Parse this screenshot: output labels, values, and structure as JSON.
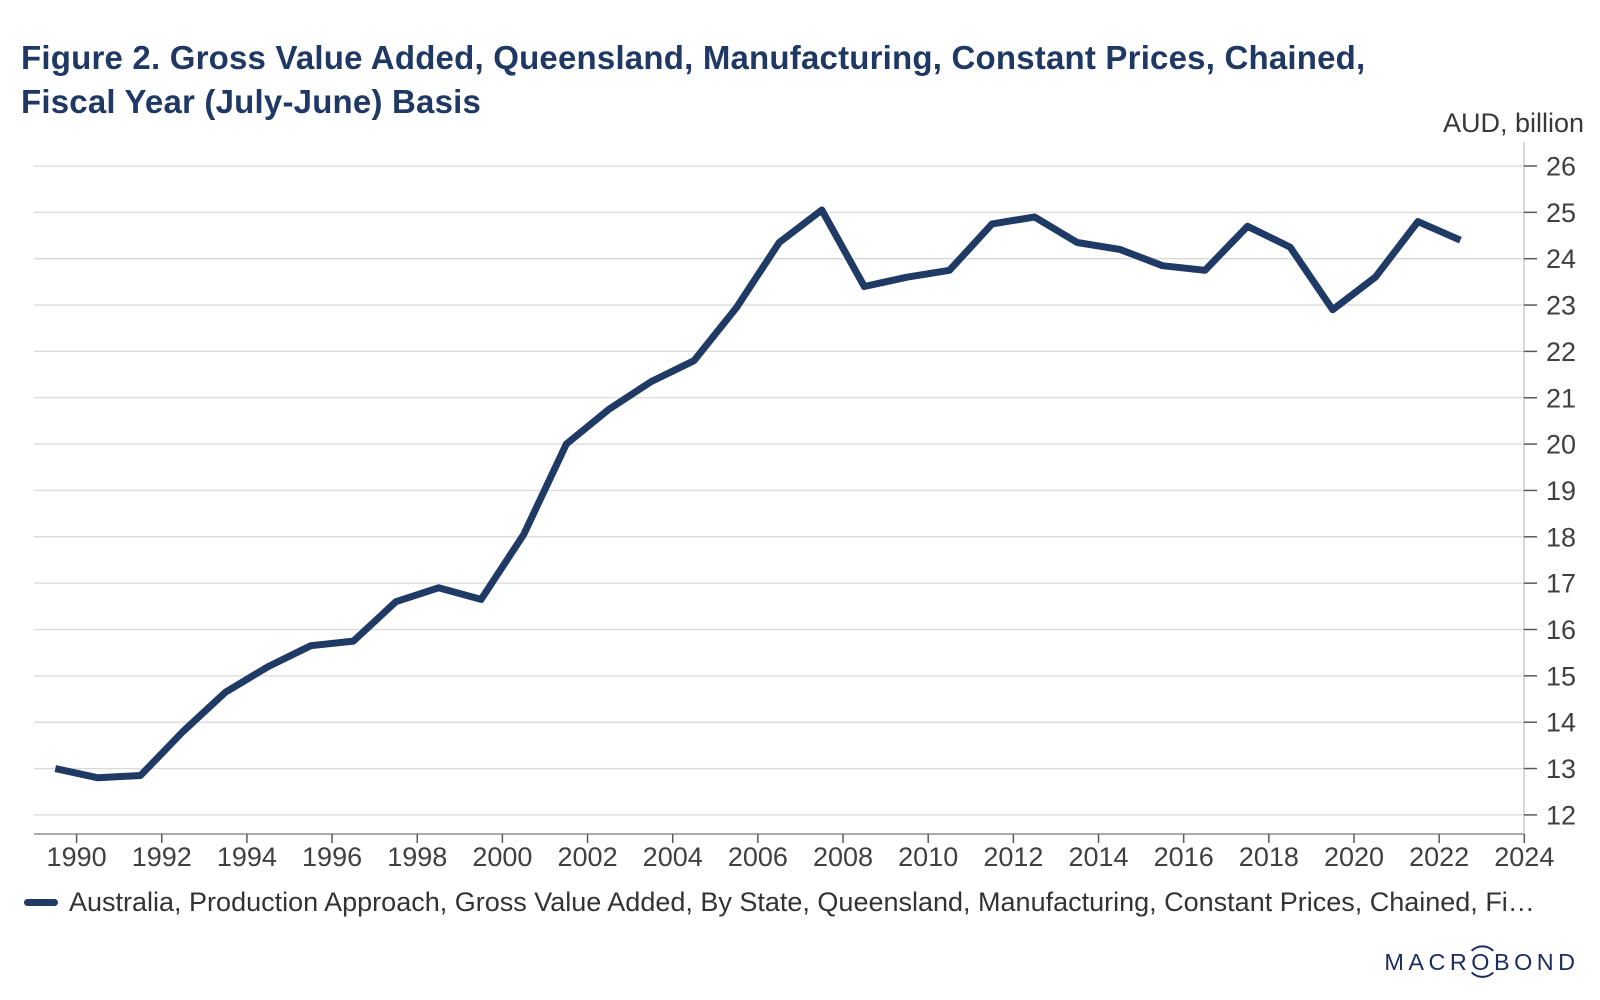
{
  "header": {
    "title": "Figure 2. Gross Value Added, Queensland, Manufacturing, Constant Prices, Chained, Fiscal Year (July-June) Basis",
    "unit_label": "AUD, billion"
  },
  "legend": {
    "series_label": "Australia, Production Approach, Gross Value Added, By State, Queensland, Manufacturing, Constant Prices, Chained, Fi…"
  },
  "footer": {
    "logo_text": "MACROBOND"
  },
  "colors": {
    "title": "#1f3864",
    "line": "#1f3a64",
    "grid": "#d9d9d9",
    "axis_line": "#c3c3c3",
    "baseline": "#ababab",
    "tick": "#595959",
    "tick_label": "#404040",
    "legend_text": "#333333",
    "logo": "#1b2d5e"
  },
  "chart_data": {
    "type": "line",
    "title": "Figure 2. Gross Value Added, Queensland, Manufacturing, Constant Prices, Chained, Fiscal Year (July-June) Basis",
    "xlabel": "",
    "ylabel": "AUD, billion",
    "xlim": [
      1989,
      2024
    ],
    "ylim": [
      12,
      26
    ],
    "grid": "horizontal",
    "legend_position": "bottom-left",
    "x_ticks": [
      1990,
      1992,
      1994,
      1996,
      1998,
      2000,
      2002,
      2004,
      2006,
      2008,
      2010,
      2012,
      2014,
      2016,
      2018,
      2020,
      2022,
      2024
    ],
    "y_ticks": [
      12,
      13,
      14,
      15,
      16,
      17,
      18,
      19,
      20,
      21,
      22,
      23,
      24,
      25,
      26
    ],
    "series": [
      {
        "name": "Australia, Production Approach, Gross Value Added, By State, Queensland, Manufacturing, Constant Prices, Chained, Fi…",
        "fiscal_years": [
          1990,
          1991,
          1992,
          1993,
          1994,
          1995,
          1996,
          1997,
          1998,
          1999,
          2000,
          2001,
          2002,
          2003,
          2004,
          2005,
          2006,
          2007,
          2008,
          2009,
          2010,
          2011,
          2012,
          2013,
          2014,
          2015,
          2016,
          2017,
          2018,
          2019,
          2020,
          2021,
          2022,
          2023
        ],
        "values": [
          13.0,
          12.8,
          12.85,
          13.8,
          14.65,
          15.2,
          15.65,
          15.75,
          16.6,
          16.9,
          16.65,
          18.05,
          20.0,
          20.75,
          21.35,
          21.8,
          22.95,
          24.35,
          25.05,
          23.4,
          23.6,
          23.75,
          24.75,
          24.9,
          24.35,
          24.2,
          23.85,
          23.75,
          24.7,
          24.25,
          22.9,
          23.6,
          24.8,
          24.4
        ]
      }
    ]
  }
}
